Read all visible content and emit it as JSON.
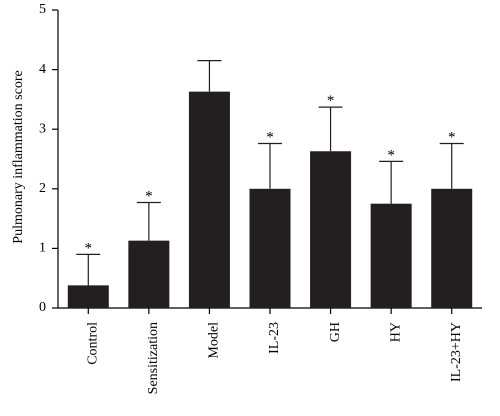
{
  "chart_data": {
    "type": "bar",
    "title": "",
    "xlabel": "",
    "ylabel": "Pulmonary inflammation score",
    "ylim": [
      0,
      5
    ],
    "yticks": [
      "0",
      "1",
      "2",
      "3",
      "4",
      "5"
    ],
    "categories": [
      "Control",
      "Sensitization",
      "Model",
      "IL-23",
      "GH",
      "HY",
      "IL-23+HY"
    ],
    "values": [
      0.38,
      1.13,
      3.63,
      2.0,
      2.63,
      1.75,
      2.0
    ],
    "errors": [
      0.52,
      0.64,
      0.52,
      0.76,
      0.74,
      0.71,
      0.76
    ],
    "annotations": [
      "*",
      "*",
      "",
      "*",
      "*",
      "*",
      "*"
    ],
    "bar_color": "#231f20",
    "grid": false,
    "legend": "none"
  }
}
